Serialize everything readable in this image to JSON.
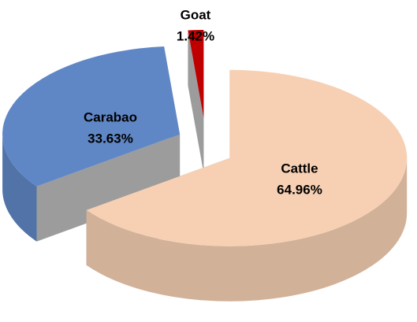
{
  "chart_data": {
    "type": "pie",
    "categories": [
      "Cattle",
      "Carabao",
      "Goat"
    ],
    "values": [
      64.96,
      33.63,
      1.42
    ],
    "value_labels": [
      "64.96%",
      "33.63%",
      "1.42%"
    ],
    "colors": [
      "#f7d0b4",
      "#5f87c6",
      "#c00000"
    ]
  }
}
